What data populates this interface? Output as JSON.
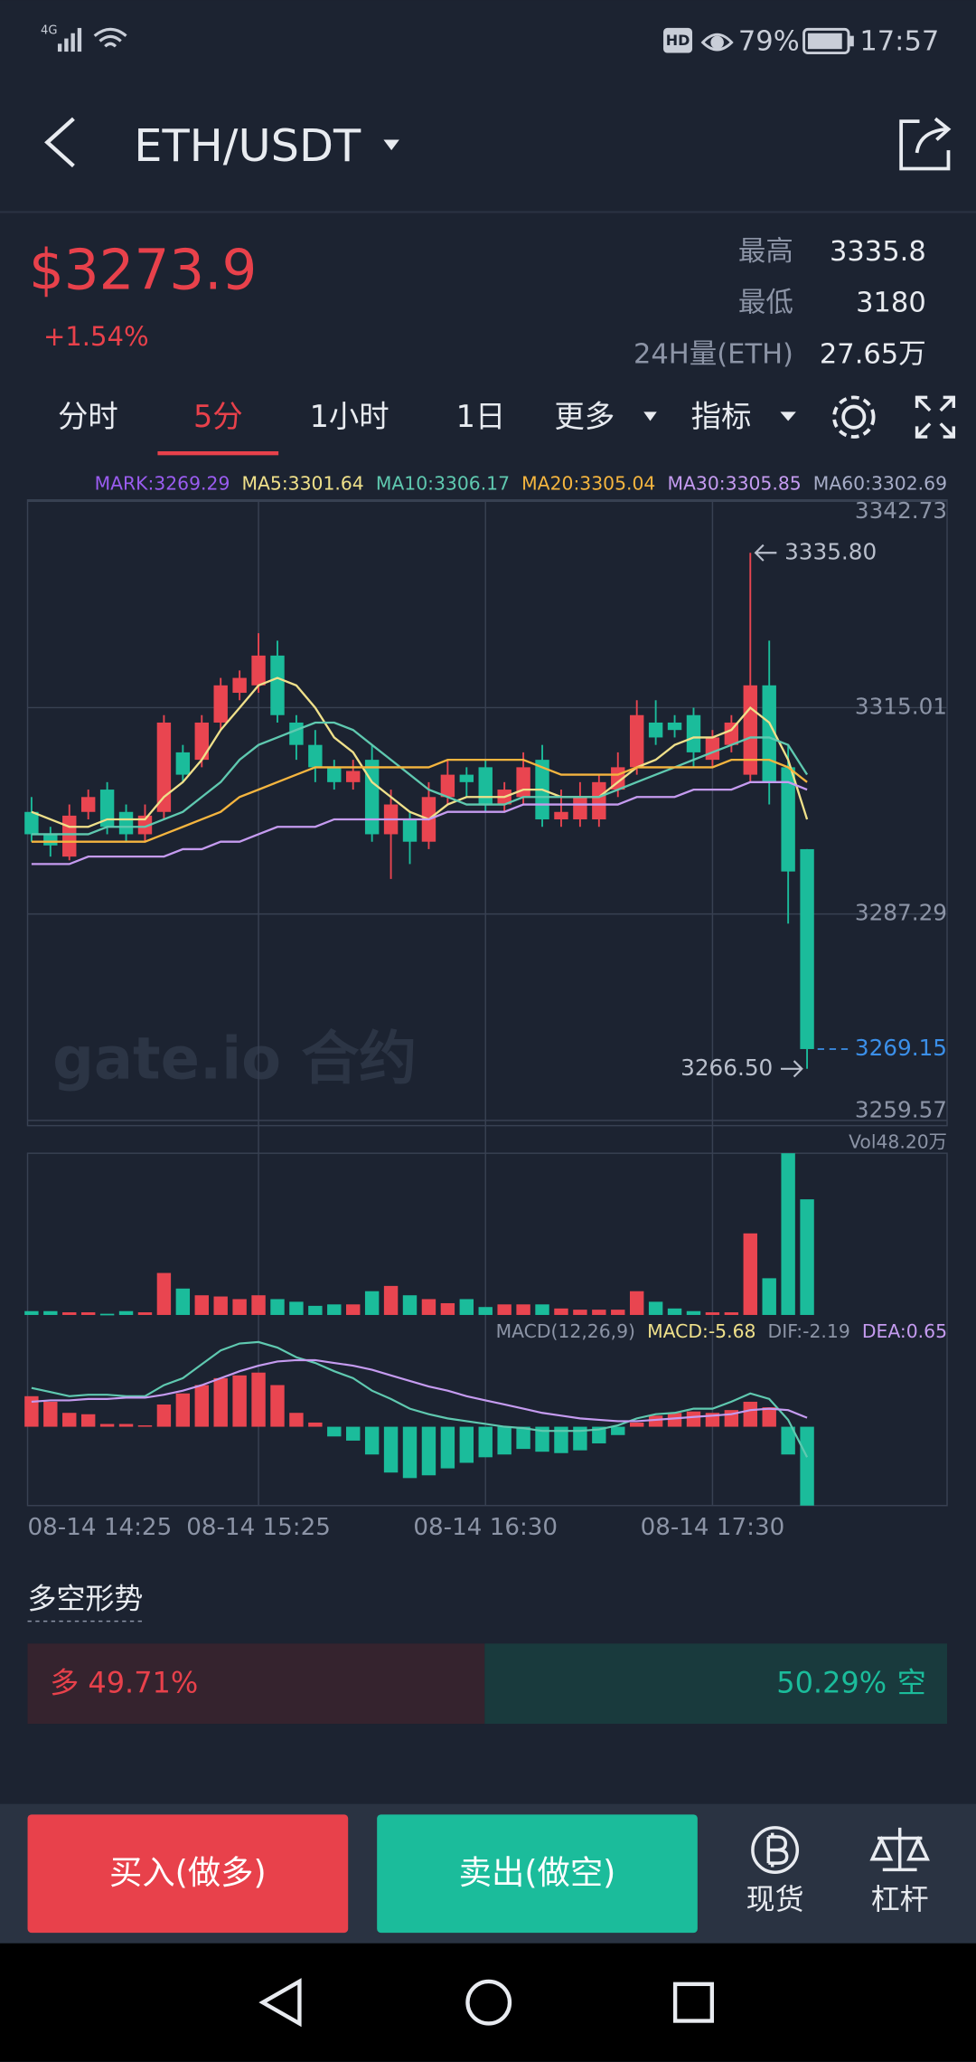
{
  "status_bar": {
    "network": "4G",
    "hd": "HD",
    "battery": "79%",
    "time": "17:57"
  },
  "header": {
    "pair": "ETH/USDT"
  },
  "ticker": {
    "price": "$3273.9",
    "change": "+1.54%",
    "stats": [
      {
        "label": "最高",
        "value": "3335.8"
      },
      {
        "label": "最低",
        "value": "3180"
      },
      {
        "label": "24H量(ETH)",
        "value": "27.65万"
      }
    ]
  },
  "tabs": [
    "分时",
    "5分",
    "1小时",
    "1日",
    "更多",
    "指标"
  ],
  "active_tab": 1,
  "chart_data": {
    "type": "candlestick",
    "up_color": "#e94550",
    "down_color": "#1bbc9b",
    "series": [
      {
        "label": "MARK:3269.29",
        "color": "#9a5cf0"
      },
      {
        "label": "MA5:3301.64",
        "color": "#efe08a",
        "values": [
          3301,
          3300,
          3299,
          3299,
          3300,
          3300,
          3300,
          3303,
          3305,
          3308,
          3312,
          3315,
          3318,
          3319,
          3318,
          3315,
          3311,
          3309,
          3305,
          3303,
          3301,
          3300,
          3302,
          3303,
          3303,
          3303,
          3304,
          3304,
          3303,
          3303,
          3303,
          3305,
          3307,
          3308,
          3310,
          3311,
          3311,
          3312,
          3315,
          3313,
          3308,
          3300
        ]
      },
      {
        "label": "MA10:3306.17",
        "color": "#5fc9b0",
        "values": [
          3298,
          3298,
          3298,
          3298,
          3299,
          3299,
          3299,
          3300,
          3301,
          3303,
          3305,
          3308,
          3310,
          3311,
          3312,
          3313,
          3313,
          3312,
          3310,
          3308,
          3306,
          3304,
          3303,
          3302,
          3302,
          3302,
          3303,
          3303,
          3303,
          3303,
          3303,
          3304,
          3305,
          3306,
          3307,
          3308,
          3309,
          3310,
          3311,
          3311,
          3310,
          3306
        ]
      },
      {
        "label": "MA20:3305.04",
        "color": "#f5b53f",
        "values": [
          3297,
          3297,
          3297,
          3297,
          3297,
          3297,
          3297,
          3298,
          3299,
          3300,
          3301,
          3303,
          3304,
          3305,
          3306,
          3307,
          3307,
          3307,
          3307,
          3307,
          3307,
          3307,
          3308,
          3308,
          3308,
          3308,
          3308,
          3307,
          3306,
          3306,
          3306,
          3306,
          3307,
          3307,
          3307,
          3307,
          3307,
          3308,
          3308,
          3308,
          3307,
          3305
        ]
      },
      {
        "label": "MA30:3305.85",
        "color": "#c59bf0",
        "values": [
          3294,
          3294,
          3294,
          3295,
          3295,
          3295,
          3295,
          3295,
          3296,
          3296,
          3297,
          3297,
          3298,
          3299,
          3299,
          3299,
          3300,
          3300,
          3300,
          3300,
          3300,
          3300,
          3301,
          3301,
          3301,
          3301,
          3302,
          3302,
          3302,
          3302,
          3302,
          3302,
          3303,
          3303,
          3303,
          3304,
          3304,
          3304,
          3305,
          3305,
          3305,
          3304
        ]
      },
      {
        "label": "MA60:3302.69",
        "color": "#a7adc8"
      }
    ],
    "open": [
      3301,
      3298,
      3295,
      3301,
      3304,
      3301,
      3298,
      3301,
      3309,
      3308,
      3313,
      3317,
      3318,
      3322,
      3313,
      3310,
      3307,
      3305,
      3308,
      3298,
      3300,
      3297,
      3303,
      3306,
      3307,
      3302,
      3303,
      3308,
      3300,
      3300,
      3300,
      3304,
      3307,
      3313,
      3313,
      3314,
      3308,
      3310,
      3306,
      3318,
      3307,
      3296
    ],
    "high": [
      3303,
      3299,
      3302,
      3304,
      3305,
      3302,
      3302,
      3314,
      3310,
      3314,
      3319,
      3320,
      3325,
      3324,
      3314,
      3312,
      3308,
      3308,
      3310,
      3304,
      3301,
      3305,
      3308,
      3307,
      3308,
      3305,
      3309,
      3310,
      3304,
      3305,
      3306,
      3309,
      3316,
      3316,
      3314,
      3315,
      3312,
      3314,
      3335.8,
      3324,
      3310,
      3296
    ],
    "low": [
      3297,
      3295,
      3294.5,
      3300,
      3298,
      3297,
      3297,
      3300,
      3305,
      3307,
      3312,
      3316,
      3317,
      3313,
      3308,
      3305,
      3304,
      3304,
      3297,
      3292,
      3294,
      3296,
      3302,
      3303,
      3301,
      3301,
      3302,
      3299,
      3299,
      3299,
      3299,
      3303,
      3306,
      3310,
      3311,
      3307,
      3307,
      3309,
      3305,
      3302,
      3286,
      3266.5
    ],
    "close": [
      3298,
      3296.5,
      3300.5,
      3303,
      3299,
      3298,
      3300.5,
      3313,
      3306,
      3313,
      3318,
      3319,
      3322,
      3314,
      3310,
      3307,
      3305,
      3306.5,
      3298,
      3302,
      3297,
      3303,
      3306,
      3305,
      3302,
      3304,
      3307,
      3300,
      3301,
      3303,
      3305,
      3307,
      3314,
      3311,
      3312,
      3309,
      3311,
      3313,
      3318,
      3305,
      3293,
      3269.15
    ],
    "ylim": [
      3259.57,
      3342.73
    ],
    "yticks": [
      3342.73,
      3315.01,
      3287.29,
      3259.57
    ],
    "xticks": [
      {
        "value": 0,
        "label": "08-14 14:25"
      },
      {
        "value": 12,
        "label": "08-14 15:25"
      },
      {
        "value": 24,
        "label": "08-14 16:30"
      },
      {
        "value": 36,
        "label": "08-14 17:30"
      }
    ],
    "high_marker": "3335.80",
    "low_marker": "3266.50",
    "last_price": {
      "value": 3269.15,
      "label": "3269.15"
    },
    "watermark": "gate.io 合约",
    "volume": {
      "label": "Vol48.20万",
      "ylim": [
        0,
        67.4
      ],
      "values": [
        1.6,
        1.6,
        1.1,
        1.1,
        0.5,
        1.6,
        1.1,
        17.5,
        11,
        8.2,
        7.7,
        6.6,
        8.2,
        6.6,
        5.5,
        3.8,
        4.4,
        4.4,
        9.9,
        12.1,
        8.2,
        6.6,
        4.9,
        6.6,
        3.3,
        4.4,
        4.4,
        4.4,
        2.7,
        2.2,
        2.2,
        2.2,
        9.9,
        5.5,
        2.7,
        1.6,
        1.1,
        1.1,
        34,
        15.3,
        67.4,
        48.2
      ]
    },
    "macd": {
      "labels": [
        {
          "text": "MACD(12,26,9)",
          "color": "#8c94a6"
        },
        {
          "text": "MACD:-5.68",
          "color": "#efe08a"
        },
        {
          "text": "DIF:-2.19",
          "color": "#8c94a6"
        },
        {
          "text": "DEA:0.65",
          "color": "#c59bf0"
        }
      ],
      "ylim": [
        -5.68,
        7.58
      ],
      "histogram": [
        2.2,
        1.8,
        1.0,
        0.9,
        0.2,
        0.2,
        0.1,
        1.6,
        2.4,
        3.0,
        3.5,
        3.7,
        3.9,
        3.0,
        1.0,
        0.3,
        -0.7,
        -1.0,
        -2.0,
        -3.3,
        -3.7,
        -3.5,
        -3.0,
        -2.6,
        -2.2,
        -2.0,
        -1.6,
        -1.8,
        -1.9,
        -1.7,
        -1.2,
        -0.6,
        0.3,
        0.8,
        1.0,
        1.1,
        1.0,
        1.2,
        1.8,
        1.4,
        -2.0,
        -5.68
      ],
      "dif": {
        "color": "#5fc9b0",
        "values": [
          2.8,
          2.5,
          2.2,
          2.3,
          2.3,
          2.2,
          2.2,
          3.0,
          3.5,
          4.5,
          5.5,
          6.0,
          6.1,
          5.7,
          5.0,
          4.6,
          4.0,
          3.5,
          2.6,
          2.0,
          1.3,
          0.9,
          0.6,
          0.4,
          0.2,
          0,
          -0.1,
          -0.3,
          -0.3,
          -0.3,
          -0.2,
          0.1,
          0.6,
          0.9,
          1.0,
          1.3,
          1.3,
          1.8,
          2.4,
          2.0,
          0.5,
          -2.19
        ]
      },
      "dea": {
        "color": "#c59bf0",
        "values": [
          1.8,
          1.9,
          1.9,
          2.0,
          2.0,
          2.1,
          2.1,
          2.3,
          2.6,
          3.0,
          3.5,
          4.0,
          4.4,
          4.7,
          4.8,
          4.8,
          4.6,
          4.4,
          4.1,
          3.7,
          3.3,
          2.9,
          2.6,
          2.2,
          1.9,
          1.6,
          1.3,
          1.0,
          0.8,
          0.6,
          0.5,
          0.4,
          0.4,
          0.5,
          0.6,
          0.7,
          0.8,
          0.9,
          1.2,
          1.3,
          1.2,
          0.65
        ]
      }
    }
  },
  "long_short": {
    "title": "多空形势",
    "long": {
      "name": "多",
      "share": {
        "value": 49.71,
        "label": "49.71%"
      }
    },
    "short": {
      "name": "空",
      "share": {
        "value": 50.29,
        "label": "50.29%"
      }
    }
  },
  "actions": {
    "buy": "买入(做多)",
    "sell": "卖出(做空)",
    "spot": "现货",
    "margin": "杠杆"
  }
}
